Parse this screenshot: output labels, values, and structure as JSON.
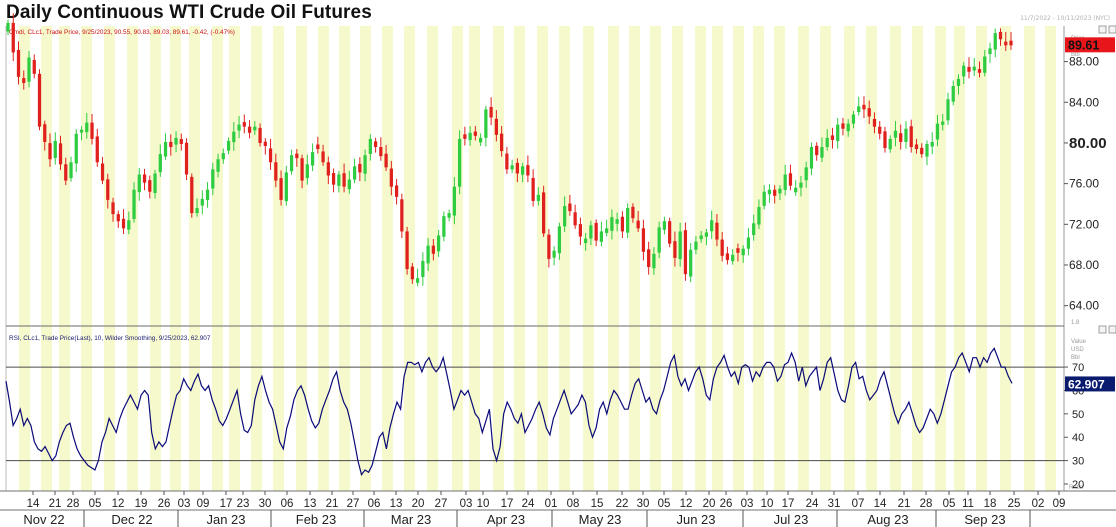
{
  "title": "Daily Continuous WTI Crude Oil Futures",
  "date_range": "11/7/2022 - 10/11/2023 (NYC)",
  "colors": {
    "up": "#2ecc40",
    "down": "#e0201c",
    "rsi_line": "#0a0a78",
    "band": "#f6f9cc",
    "price_tag": "#e8151b",
    "rsi_tag": "#0a1a6e"
  },
  "price_panel": {
    "legend": "Cmdi, CLc1, Trade Price, 9/25/2023, 90.55, 90.83, 89.03, 89.61, -0.42, (-0.47%)",
    "axis_header": [
      "Price",
      "USD",
      "Bbl"
    ],
    "current_price_label": "89.61",
    "corner_label": "1.8"
  },
  "rsi_panel": {
    "legend": "RSI, CLc1, Trade Price(Last), 10, Wilder Smoothing, 9/25/2023, 62.907",
    "axis_header": [
      "Value",
      "USD",
      "Bbl"
    ],
    "current_value_label": "62.907",
    "corner_label": "Ratio"
  },
  "x_axis": {
    "day_ticks": [
      "14",
      "21",
      "28",
      "05",
      "12",
      "19",
      "26",
      "03",
      "09",
      "17",
      "23",
      "30",
      "06",
      "13",
      "21",
      "27",
      "06",
      "13",
      "20",
      "27",
      "03",
      "10",
      "17",
      "24",
      "01",
      "08",
      "15",
      "22",
      "30",
      "05",
      "12",
      "20",
      "26",
      "03",
      "10",
      "17",
      "24",
      "31",
      "07",
      "14",
      "21",
      "28",
      "05",
      "11",
      "18",
      "25",
      "02",
      "09"
    ],
    "month_labels": [
      "Nov 22",
      "Dec 22",
      "Jan 23",
      "Feb 23",
      "Mar 23",
      "Apr 23",
      "May 23",
      "Jun 23",
      "Jul 23",
      "Aug 23",
      "Sep 23"
    ]
  },
  "chart_data": [
    {
      "type": "candlestick",
      "title": "Daily Continuous WTI Crude Oil Futures",
      "ylabel": "Price USD Bbl",
      "ylim": [
        62,
        91.5
      ],
      "y_ticks": [
        64,
        68,
        72,
        76,
        80,
        84,
        88
      ],
      "x_start": "2022-11-07",
      "x_end": "2023-10-11",
      "highlighted_tick": 80,
      "closes": [
        91.8,
        88.9,
        86.5,
        85.9,
        88.4,
        86.8,
        81.6,
        80.1,
        78.4,
        80.2,
        77.9,
        76.3,
        78.1,
        80.9,
        81.3,
        82.0,
        80.4,
        78.1,
        76.3,
        74.4,
        73.0,
        72.3,
        71.6,
        72.4,
        75.4,
        76.9,
        76.1,
        75.2,
        77.0,
        78.9,
        80.1,
        79.6,
        80.5,
        79.9,
        76.9,
        73.1,
        73.6,
        74.5,
        75.4,
        77.4,
        78.4,
        79.0,
        80.2,
        81.1,
        81.8,
        81.6,
        81.0,
        81.6,
        80.0,
        79.7,
        78.1,
        76.3,
        74.4,
        77.1,
        78.8,
        78.5,
        76.3,
        77.9,
        79.1,
        79.4,
        78.1,
        76.8,
        75.9,
        76.9,
        75.7,
        76.4,
        77.7,
        77.1,
        78.8,
        80.4,
        79.6,
        78.7,
        77.6,
        75.7,
        74.7,
        71.3,
        67.6,
        66.6,
        66.7,
        68.4,
        69.9,
        69.1,
        70.9,
        72.8,
        73.1,
        75.7,
        80.4,
        80.4,
        81.0,
        80.7,
        80.5,
        83.3,
        82.5,
        80.8,
        79.2,
        77.4,
        77.8,
        77.0,
        77.7,
        76.8,
        74.3,
        74.9,
        71.1,
        68.6,
        69.4,
        71.8,
        73.8,
        73.3,
        71.9,
        70.8,
        70.6,
        71.9,
        70.4,
        71.3,
        71.6,
        72.7,
        72.5,
        71.3,
        73.6,
        72.6,
        71.6,
        69.3,
        67.8,
        69.1,
        71.7,
        72.3,
        70.1,
        68.7,
        71.3,
        67.1,
        69.5,
        70.3,
        70.9,
        71.2,
        72.4,
        70.5,
        68.9,
        68.5,
        69.0,
        69.2,
        69.6,
        70.7,
        72.1,
        73.7,
        75.2,
        75.4,
        74.8,
        75.5,
        76.9,
        75.8,
        75.6,
        76.1,
        77.6,
        79.6,
        78.8,
        79.6,
        80.5,
        80.3,
        81.8,
        81.4,
        81.9,
        82.8,
        83.6,
        83.3,
        82.6,
        81.6,
        80.9,
        79.5,
        80.4,
        81.2,
        80.1,
        81.4,
        79.6,
        79.4,
        78.9,
        79.9,
        80.1,
        81.9,
        82.1,
        84.3,
        85.6,
        86.3,
        87.6,
        87.0,
        87.5,
        86.9,
        88.5,
        89.3,
        90.8,
        90.2,
        89.6,
        89.6
      ]
    },
    {
      "type": "line",
      "title": "RSI, CLc1, Trade Price(Last), 10, Wilder Smoothing",
      "ylim": [
        17,
        85
      ],
      "y_ticks": [
        20,
        30,
        40,
        50,
        60,
        70
      ],
      "reference_lines": [
        70,
        30
      ],
      "series": [
        {
          "name": "RSI",
          "values": [
            64,
            55,
            45,
            48,
            52,
            45,
            48,
            45,
            38,
            35,
            34,
            36,
            33,
            30,
            32,
            38,
            42,
            45,
            46,
            40,
            35,
            32,
            30,
            28,
            27,
            26,
            30,
            38,
            42,
            48,
            45,
            42,
            48,
            52,
            55,
            58,
            55,
            52,
            58,
            60,
            58,
            42,
            35,
            38,
            36,
            38,
            45,
            52,
            58,
            60,
            65,
            62,
            60,
            64,
            67,
            62,
            60,
            62,
            56,
            52,
            47,
            45,
            48,
            52,
            56,
            60,
            50,
            43,
            42,
            45,
            56,
            62,
            66,
            60,
            55,
            52,
            45,
            38,
            35,
            44,
            49,
            56,
            60,
            62,
            58,
            52,
            47,
            44,
            46,
            52,
            56,
            60,
            65,
            68,
            60,
            55,
            52,
            46,
            38,
            30,
            24,
            26,
            25,
            28,
            34,
            40,
            42,
            35,
            44,
            50,
            55,
            52,
            66,
            72,
            72,
            71,
            72,
            68,
            72,
            74,
            70,
            68,
            70,
            74,
            67,
            60,
            52,
            56,
            60,
            58,
            60,
            55,
            50,
            48,
            42,
            47,
            52,
            35,
            30,
            36,
            50,
            55,
            52,
            48,
            46,
            50,
            42,
            45,
            48,
            52,
            55,
            50,
            44,
            41,
            48,
            52,
            56,
            60,
            55,
            50,
            52,
            54,
            58,
            55,
            45,
            40,
            44,
            52,
            55,
            50,
            56,
            60,
            58,
            55,
            52,
            52,
            58,
            63,
            65,
            60,
            55,
            57,
            52,
            50,
            56,
            60,
            66,
            72,
            75,
            66,
            62,
            65,
            60,
            64,
            68,
            70,
            65,
            58,
            56,
            65,
            70,
            72,
            75,
            70,
            66,
            68,
            63,
            70,
            71,
            70,
            64,
            68,
            66,
            70,
            72,
            72,
            70,
            64,
            66,
            71,
            72,
            76,
            72,
            64,
            70,
            62,
            66,
            68,
            70,
            60,
            65,
            72,
            74,
            67,
            60,
            56,
            55,
            62,
            70,
            72,
            65,
            66,
            60,
            56,
            58,
            60,
            65,
            68,
            62,
            56,
            50,
            46,
            50,
            52,
            55,
            50,
            45,
            42,
            44,
            48,
            52,
            50,
            46,
            50,
            56,
            62,
            68,
            70,
            74,
            76,
            72,
            68,
            74,
            74,
            70,
            74,
            72,
            76,
            78,
            74,
            70,
            70,
            66,
            63
          ]
        }
      ]
    }
  ]
}
